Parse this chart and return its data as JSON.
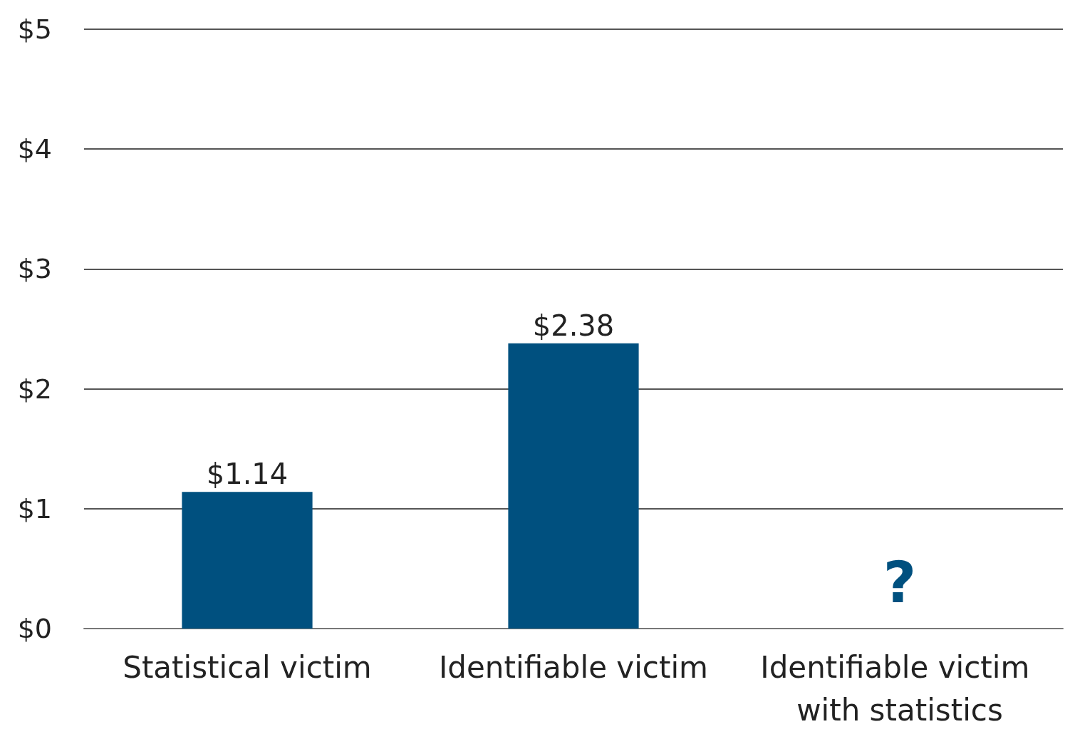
{
  "chart_data": {
    "type": "bar",
    "categories": [
      "Statistical victim",
      "Identifiable victim",
      "Identifiable victim with statistics"
    ],
    "values": [
      1.14,
      2.38,
      null
    ],
    "color": "#00507f",
    "value_labels": [
      "$1.14",
      "$2.38",
      null
    ],
    "annotations": [
      "?"
    ],
    "ylim": [
      0,
      5
    ],
    "yticks": [
      {
        "value": 0,
        "label": "$0"
      },
      {
        "value": 1,
        "label": "$1"
      },
      {
        "value": 2,
        "label": "$2"
      },
      {
        "value": 3,
        "label": "$3"
      },
      {
        "value": 4,
        "label": "$4"
      },
      {
        "value": 5,
        "label": "$5"
      }
    ],
    "grid": "y"
  }
}
